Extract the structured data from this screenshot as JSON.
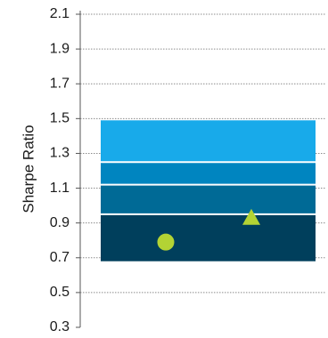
{
  "chart_data": {
    "type": "floating-box",
    "ylabel": "Sharpe Ratio",
    "ylim": [
      0.3,
      2.1
    ],
    "yticks": [
      0.3,
      0.5,
      0.7,
      0.9,
      1.1,
      1.3,
      1.5,
      1.7,
      1.9,
      2.1
    ],
    "ytick_labels": [
      "0.3",
      "0.5",
      "0.7",
      "0.9",
      "1.1",
      "1.3",
      "1.5",
      "1.7",
      "1.9",
      "2.1"
    ],
    "grid": true,
    "bands": [
      {
        "from": 0.68,
        "to": 0.95,
        "color": "#003f5c"
      },
      {
        "from": 0.95,
        "to": 1.12,
        "color": "#006a96"
      },
      {
        "from": 1.12,
        "to": 1.25,
        "color": "#0085c0"
      },
      {
        "from": 1.25,
        "to": 1.49,
        "color": "#18aaea"
      }
    ],
    "markers": [
      {
        "shape": "circle",
        "value": 0.79,
        "color": "#b3d334"
      },
      {
        "shape": "triangle",
        "value": 0.93,
        "color": "#b3d334"
      }
    ]
  }
}
